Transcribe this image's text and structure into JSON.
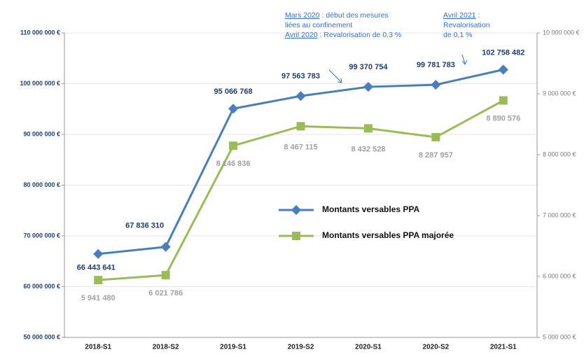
{
  "chart_data": {
    "type": "line",
    "categories": [
      "2018-S1",
      "2018-S2",
      "2019-S1",
      "2019-S2",
      "2020-S1",
      "2020-S2",
      "2021-S1"
    ],
    "series": [
      {
        "name": "Montants versables PPA",
        "color": "#4a7ebb",
        "values": [
          66443641,
          67836310,
          95066768,
          97563783,
          99370754,
          99781783,
          102758482
        ],
        "value_labels": [
          "66 443 641",
          "67 836 310",
          "95 066 768",
          "97 563 783",
          "99 370 754",
          "99 781 783",
          "102 758 482"
        ]
      },
      {
        "name": "Montants versables PPA majorée",
        "color": "#9bbb59",
        "axis": "y2",
        "values": [
          5941480,
          6021786,
          8146836,
          8467115,
          8432528,
          8287957,
          8890576
        ],
        "value_labels": [
          "5 941 480",
          "6 021 786",
          "8 146 836",
          "8 467 115",
          "8 432 528",
          "8 287 957",
          "8 890 576"
        ]
      }
    ],
    "ylim": [
      50000000,
      110000000
    ],
    "yticks": [
      {
        "value": 50000000,
        "label": "50 000 000 €"
      },
      {
        "value": 60000000,
        "label": "60 000 000 €"
      },
      {
        "value": 70000000,
        "label": "70 000 000 €"
      },
      {
        "value": 80000000,
        "label": "80 000 000 €"
      },
      {
        "value": 90000000,
        "label": "90 000 000 €"
      },
      {
        "value": 100000000,
        "label": "100 000 000 €"
      },
      {
        "value": 110000000,
        "label": "110 000 000 €"
      }
    ],
    "y2lim": [
      5000000,
      10000000
    ],
    "y2ticks": [
      {
        "value": 5000000,
        "label": "5 000 000 €"
      },
      {
        "value": 6000000,
        "label": "6 000 000 €"
      },
      {
        "value": 7000000,
        "label": "7 000 000 €"
      },
      {
        "value": 8000000,
        "label": "8 000 000 €"
      },
      {
        "value": 9000000,
        "label": "9 000 000 €"
      },
      {
        "value": 10000000,
        "label": "10 000 000 €"
      }
    ],
    "grid": true,
    "annotations": [
      {
        "lines": [
          [
            {
              "text": "Mars 2020",
              "underline": true
            },
            {
              "text": " : début des mesures"
            }
          ],
          [
            {
              "text": "liées au confinement"
            }
          ],
          [
            {
              "text": "Avril 2020",
              "underline": true
            },
            {
              "text": " : Revalorisation de 0,3 %"
            }
          ]
        ]
      },
      {
        "lines": [
          [
            {
              "text": "Avril 2021",
              "underline": true
            },
            {
              "text": " :"
            }
          ],
          [
            {
              "text": "Revalorisation"
            }
          ],
          [
            {
              "text": "de 0,1 %"
            }
          ]
        ]
      }
    ]
  }
}
